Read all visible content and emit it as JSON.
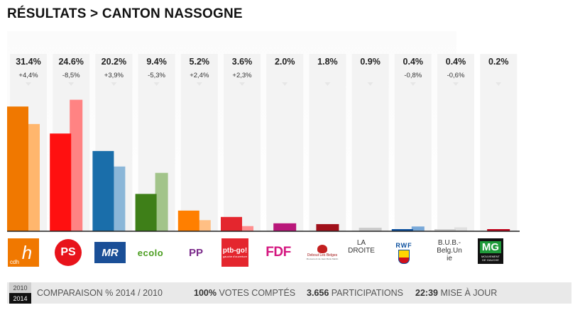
{
  "header": {
    "title": "RÉSULTATS > CANTON NASSOGNE"
  },
  "chart_data": {
    "type": "bar",
    "title": "RÉSULTATS > CANTON NASSOGNE",
    "categories": [
      "cdH",
      "PS",
      "MR",
      "ECOLO",
      "PP",
      "PTB-GO!",
      "FDF",
      "Debout Les Belges",
      "LA DROITE",
      "RWF",
      "B.U.B.-Belg.Unie",
      "MG"
    ],
    "series": [
      {
        "name": "2014",
        "values": [
          31.4,
          24.6,
          20.2,
          9.4,
          5.2,
          3.6,
          2.0,
          1.8,
          0.9,
          0.4,
          0.4,
          0.2
        ]
      },
      {
        "name": "2010",
        "values": [
          27.0,
          33.1,
          16.3,
          14.7,
          2.8,
          1.3,
          null,
          null,
          null,
          1.2,
          1.0,
          null
        ]
      }
    ],
    "labels_2014": [
      "31.4%",
      "24.6%",
      "20.2%",
      "9.4%",
      "5.2%",
      "3.6%",
      "2.0%",
      "1.8%",
      "0.9%",
      "0.4%",
      "0.4%",
      "0.2%"
    ],
    "changes": [
      "+4,4%",
      "-8,5%",
      "+3,9%",
      "-5,3%",
      "+2,4%",
      "+2,3%",
      "",
      "",
      "",
      "-0,8%",
      "-0,6%",
      ""
    ],
    "colors": [
      "#f07800",
      "#ff1010",
      "#1a6eaa",
      "#3e7f18",
      "#ff7f00",
      "#e4262e",
      "#b9177a",
      "#a0101a",
      "#cccccc",
      "#0a4f9e",
      "#cfcfcf",
      "#c00018"
    ],
    "colors_2010": [
      "#ffb66d",
      "#ff8383",
      "#8ab6d8",
      "#a2c48a",
      "#ffbf84",
      "#ff8f8f",
      "",
      "",
      "",
      "#78a8d8",
      "#e0e0e0",
      ""
    ],
    "logo_text": {
      "cdh_letter": "h",
      "cdh_small": "cdh",
      "ps": "PS",
      "mr": "MR",
      "ecolo": "ecolo",
      "pp": "PP",
      "ptb_main": "ptb-go!",
      "ptb_sub": "gauche d'ouverture",
      "fdf": "FDF",
      "dlb_name": "Debout Les Belges",
      "dlb_sub": "Mouvement de Jean Marie Martin",
      "ladroite_1": "LA",
      "ladroite_2": "DROITE",
      "rwf": "RWF",
      "bub_1": "B.U.B.-",
      "bub_2": "Belg.Un",
      "bub_3": "ie",
      "mg_big": "MG",
      "mg_small1": "MOUVEMENT",
      "mg_small2": "DE GAUCHE"
    }
  },
  "footer": {
    "year_old": "2010",
    "year_new": "2014",
    "comparison_label": "COMPARAISON % 2014 / 2010",
    "votes_value": "100%",
    "votes_label": "VOTES COMPTÉS",
    "participations_value": "3.656",
    "participations_label": "PARTICIPATIONS",
    "time_value": "22:39",
    "time_label": "MISE À JOUR"
  }
}
